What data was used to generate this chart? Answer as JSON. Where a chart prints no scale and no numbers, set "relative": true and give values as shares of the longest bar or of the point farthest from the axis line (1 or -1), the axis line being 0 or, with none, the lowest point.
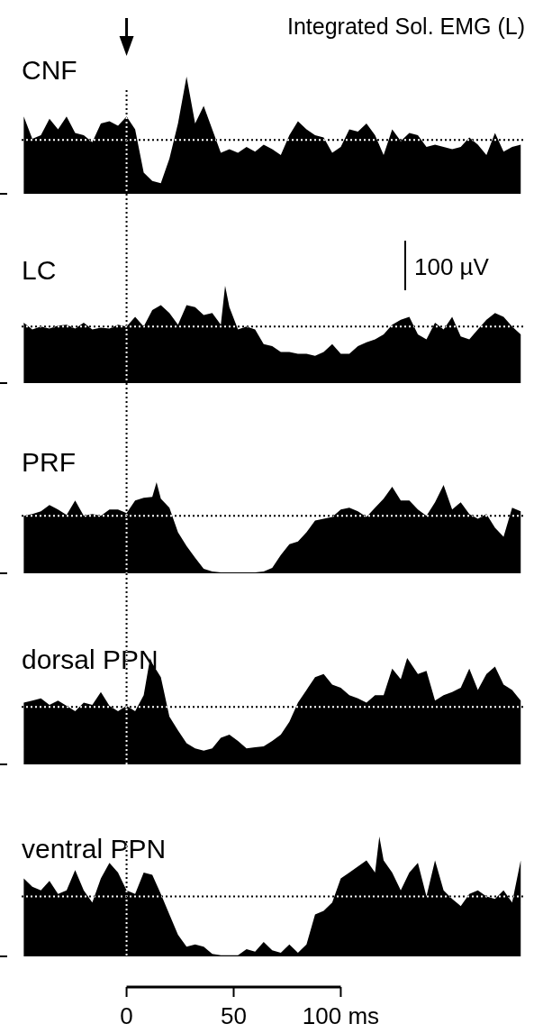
{
  "chart_data": [
    {
      "type": "area",
      "title": "CNF",
      "annotations": [
        "Integrated Sol. EMG (L)"
      ],
      "relative": true,
      "xlim": [
        -49,
        186
      ],
      "tick_labels": false,
      "color": "#000000",
      "ref_lines": [
        {
          "axis": "x",
          "value": 0,
          "line_style": "dotted"
        },
        {
          "axis": "y",
          "value": 0.46,
          "line_style": "dotted"
        }
      ],
      "x": [
        -48,
        -44,
        -40,
        -36,
        -32,
        -28,
        -24,
        -20,
        -16,
        -12,
        -8,
        -4,
        0,
        4,
        8,
        12,
        16,
        20,
        24,
        28,
        32,
        36,
        40,
        44,
        48,
        52,
        56,
        60,
        64,
        68,
        72,
        76,
        80,
        84,
        88,
        92,
        96,
        100,
        104,
        108,
        112,
        116,
        120,
        124,
        128,
        132,
        136,
        140,
        144,
        148,
        152,
        156,
        160,
        164,
        168,
        172,
        176,
        180,
        184
      ],
      "values": [
        0.66,
        0.47,
        0.5,
        0.64,
        0.55,
        0.66,
        0.52,
        0.5,
        0.44,
        0.6,
        0.62,
        0.58,
        0.66,
        0.55,
        0.18,
        0.11,
        0.09,
        0.3,
        0.6,
        1.0,
        0.6,
        0.75,
        0.55,
        0.35,
        0.38,
        0.35,
        0.4,
        0.36,
        0.42,
        0.38,
        0.33,
        0.5,
        0.62,
        0.55,
        0.5,
        0.48,
        0.35,
        0.4,
        0.55,
        0.53,
        0.6,
        0.5,
        0.33,
        0.55,
        0.45,
        0.52,
        0.5,
        0.4,
        0.42,
        0.4,
        0.38,
        0.4,
        0.48,
        0.42,
        0.33,
        0.52,
        0.36,
        0.4,
        0.42
      ]
    },
    {
      "type": "area",
      "title": "LC",
      "annotations": [
        "100 µV"
      ],
      "relative": true,
      "xlim": [
        -49,
        186
      ],
      "tick_labels": false,
      "color": "#000000",
      "ref_lines": [
        {
          "axis": "x",
          "value": 0,
          "line_style": "dotted"
        },
        {
          "axis": "y",
          "value": 0.58,
          "line_style": "dotted"
        }
      ],
      "x": [
        -48,
        -44,
        -40,
        -36,
        -32,
        -28,
        -24,
        -20,
        -16,
        -12,
        -8,
        -4,
        0,
        4,
        8,
        12,
        16,
        20,
        24,
        28,
        32,
        36,
        40,
        44,
        46,
        48,
        52,
        56,
        60,
        64,
        68,
        72,
        76,
        80,
        84,
        88,
        92,
        96,
        100,
        104,
        108,
        112,
        116,
        120,
        124,
        128,
        132,
        136,
        140,
        144,
        148,
        152,
        156,
        160,
        164,
        168,
        172,
        176,
        180,
        184
      ],
      "values": [
        0.62,
        0.55,
        0.58,
        0.56,
        0.59,
        0.6,
        0.56,
        0.62,
        0.55,
        0.57,
        0.56,
        0.6,
        0.58,
        0.68,
        0.58,
        0.75,
        0.8,
        0.72,
        0.6,
        0.8,
        0.78,
        0.7,
        0.72,
        0.6,
        1.0,
        0.78,
        0.55,
        0.58,
        0.55,
        0.4,
        0.38,
        0.32,
        0.32,
        0.3,
        0.3,
        0.28,
        0.32,
        0.4,
        0.3,
        0.3,
        0.38,
        0.42,
        0.45,
        0.5,
        0.6,
        0.65,
        0.68,
        0.5,
        0.45,
        0.62,
        0.55,
        0.68,
        0.48,
        0.45,
        0.55,
        0.65,
        0.72,
        0.68,
        0.58,
        0.5
      ]
    },
    {
      "type": "area",
      "title": "PRF",
      "relative": true,
      "xlim": [
        -49,
        186
      ],
      "tick_labels": false,
      "color": "#000000",
      "ref_lines": [
        {
          "axis": "x",
          "value": 0,
          "line_style": "dotted"
        },
        {
          "axis": "y",
          "value": 0.63,
          "line_style": "dotted"
        }
      ],
      "x": [
        -48,
        -44,
        -40,
        -36,
        -32,
        -28,
        -24,
        -20,
        -16,
        -12,
        -8,
        -4,
        0,
        4,
        8,
        12,
        14,
        16,
        20,
        24,
        28,
        32,
        36,
        40,
        44,
        48,
        52,
        56,
        60,
        64,
        68,
        72,
        76,
        80,
        84,
        88,
        92,
        96,
        100,
        104,
        108,
        112,
        116,
        120,
        124,
        128,
        132,
        136,
        140,
        144,
        148,
        152,
        156,
        160,
        164,
        168,
        172,
        176,
        180,
        184
      ],
      "values": [
        0.63,
        0.65,
        0.68,
        0.75,
        0.7,
        0.64,
        0.8,
        0.63,
        0.65,
        0.63,
        0.7,
        0.7,
        0.66,
        0.8,
        0.83,
        0.84,
        1.0,
        0.82,
        0.72,
        0.45,
        0.3,
        0.17,
        0.05,
        0.02,
        0.01,
        0.01,
        0.01,
        0.01,
        0.01,
        0.02,
        0.06,
        0.2,
        0.32,
        0.35,
        0.45,
        0.58,
        0.6,
        0.62,
        0.7,
        0.72,
        0.68,
        0.62,
        0.72,
        0.82,
        0.95,
        0.8,
        0.8,
        0.7,
        0.63,
        0.78,
        0.97,
        0.7,
        0.78,
        0.65,
        0.6,
        0.65,
        0.5,
        0.4,
        0.72,
        0.68
      ]
    },
    {
      "type": "area",
      "title": "dorsal PPN",
      "relative": true,
      "xlim": [
        -49,
        186
      ],
      "tick_labels": false,
      "color": "#000000",
      "ref_lines": [
        {
          "axis": "x",
          "value": 0,
          "line_style": "dotted"
        },
        {
          "axis": "y",
          "value": 0.54,
          "line_style": "dotted"
        }
      ],
      "x": [
        -48,
        -44,
        -40,
        -36,
        -32,
        -28,
        -24,
        -20,
        -16,
        -12,
        -8,
        -4,
        0,
        4,
        8,
        11,
        12,
        16,
        20,
        24,
        28,
        32,
        36,
        40,
        44,
        48,
        52,
        56,
        60,
        64,
        68,
        72,
        76,
        80,
        84,
        88,
        92,
        96,
        100,
        104,
        108,
        112,
        116,
        120,
        124,
        128,
        131,
        136,
        140,
        144,
        148,
        152,
        156,
        160,
        164,
        168,
        172,
        176,
        180,
        184
      ],
      "values": [
        0.58,
        0.6,
        0.62,
        0.56,
        0.6,
        0.55,
        0.5,
        0.58,
        0.56,
        0.68,
        0.55,
        0.5,
        0.55,
        0.5,
        0.65,
        1.0,
        0.95,
        0.82,
        0.45,
        0.32,
        0.2,
        0.15,
        0.13,
        0.15,
        0.25,
        0.28,
        0.22,
        0.15,
        0.16,
        0.17,
        0.22,
        0.28,
        0.4,
        0.58,
        0.7,
        0.82,
        0.85,
        0.75,
        0.72,
        0.65,
        0.62,
        0.58,
        0.65,
        0.65,
        0.9,
        0.8,
        1.0,
        0.85,
        0.88,
        0.6,
        0.65,
        0.68,
        0.72,
        0.9,
        0.7,
        0.85,
        0.92,
        0.75,
        0.7,
        0.6
      ]
    },
    {
      "type": "area",
      "title": "ventral PPN",
      "relative": true,
      "xlim": [
        -49,
        186
      ],
      "tick_labels": "x",
      "xticks": [
        0,
        50,
        {
          "value": 100,
          "label": "100 ms"
        }
      ],
      "color": "#000000",
      "ref_lines": [
        {
          "axis": "x",
          "value": 0,
          "line_style": "dotted"
        },
        {
          "axis": "y",
          "value": 0.5,
          "line_style": "dotted"
        }
      ],
      "x": [
        -48,
        -44,
        -40,
        -36,
        -32,
        -28,
        -24,
        -20,
        -16,
        -12,
        -8,
        -4,
        0,
        4,
        8,
        12,
        16,
        20,
        24,
        28,
        32,
        36,
        40,
        44,
        48,
        52,
        56,
        60,
        64,
        68,
        72,
        76,
        80,
        84,
        88,
        92,
        96,
        100,
        104,
        108,
        112,
        116,
        118,
        120,
        124,
        128,
        132,
        136,
        140,
        144,
        148,
        152,
        156,
        160,
        164,
        168,
        172,
        176,
        180,
        184
      ],
      "values": [
        0.65,
        0.58,
        0.55,
        0.63,
        0.52,
        0.55,
        0.72,
        0.55,
        0.45,
        0.65,
        0.78,
        0.7,
        0.55,
        0.52,
        0.7,
        0.68,
        0.52,
        0.35,
        0.18,
        0.08,
        0.1,
        0.08,
        0.02,
        0.01,
        0.01,
        0.01,
        0.06,
        0.04,
        0.12,
        0.05,
        0.03,
        0.1,
        0.03,
        0.1,
        0.35,
        0.38,
        0.45,
        0.65,
        0.7,
        0.75,
        0.8,
        0.7,
        1.0,
        0.8,
        0.7,
        0.55,
        0.7,
        0.78,
        0.5,
        0.8,
        0.55,
        0.48,
        0.42,
        0.52,
        0.55,
        0.5,
        0.48,
        0.55,
        0.45,
        0.8
      ]
    }
  ]
}
